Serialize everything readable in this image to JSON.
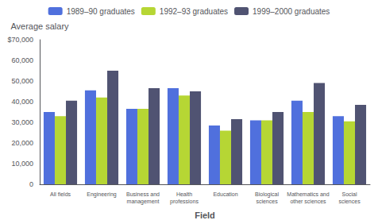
{
  "chart_data": {
    "type": "bar",
    "xlabel": "Field",
    "ylabel": "Average salary",
    "categories": [
      "All fields",
      "Engineering",
      "Business and\nmanagement",
      "Health\nprofessions",
      "Education",
      "Biological\nsciences",
      "Mathematics and\nother sciences",
      "Social\nsciences"
    ],
    "series": [
      {
        "name": "1989–90 graduates",
        "values": [
          35000,
          45500,
          36500,
          46500,
          28500,
          31000,
          40500,
          33000
        ]
      },
      {
        "name": "1992–93 graduates",
        "values": [
          33000,
          42000,
          36500,
          43000,
          26000,
          31000,
          35000,
          30500
        ]
      },
      {
        "name": "1999–2000 graduates",
        "values": [
          40500,
          55000,
          46500,
          45000,
          31500,
          35000,
          49000,
          38500
        ]
      }
    ],
    "ylim": [
      0,
      70000
    ],
    "yticks": [
      0,
      {
        "value": 10000,
        "label": "10,000"
      },
      {
        "value": 20000,
        "label": "20,000"
      },
      {
        "value": 30000,
        "label": "30,000"
      },
      {
        "value": 40000,
        "label": "40,000"
      },
      {
        "value": 50000,
        "label": "50,000"
      },
      {
        "value": 60000,
        "label": "60,000"
      },
      {
        "value": 70000,
        "label": "$70,000"
      }
    ],
    "grid": false,
    "legend": "top"
  }
}
